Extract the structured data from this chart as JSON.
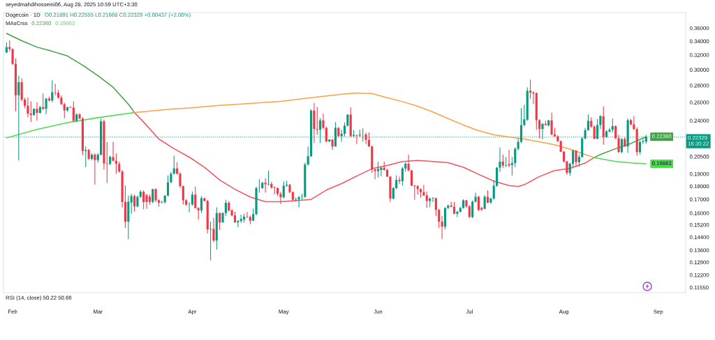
{
  "chart_data": {
    "type": "candlestick",
    "title": "Dogecoin · 1D",
    "subtitle": "seyedmahdihosseini06, Aug 28, 2025 10:59 UTC+3:30",
    "annotations": [
      "O0.21891 H0.22555 L0.21668 C0.22329 +0.00437 (+2.00%)",
      "MAsCrss",
      "RSI (14, close) 50.22 50.66"
    ],
    "log": "y",
    "xlim": [
      "2025-01-29",
      "2025-09-10"
    ],
    "xticks": [
      {
        "value": "2025-02-01",
        "label": "Feb"
      },
      {
        "value": "2025-03-01",
        "label": "Mar"
      },
      {
        "value": "2025-04-01",
        "label": "Apr"
      },
      {
        "value": "2025-05-01",
        "label": "May"
      },
      {
        "value": "2025-06-01",
        "label": "Jun"
      },
      {
        "value": "2025-07-01",
        "label": "Jul"
      },
      {
        "value": "2025-08-01",
        "label": "Aug"
      },
      {
        "value": "2025-09-01",
        "label": "Sep"
      }
    ],
    "ylim": [
      0.1129,
      0.3854
    ],
    "yticks": [
      {
        "value": 0.36,
        "label": "0.36000"
      },
      {
        "value": 0.34,
        "label": "0.34000"
      },
      {
        "value": 0.32,
        "label": "0.32000"
      },
      {
        "value": 0.3,
        "label": "0.30000"
      },
      {
        "value": 0.28,
        "label": "0.28000"
      },
      {
        "value": 0.26,
        "label": "0.26000"
      },
      {
        "value": 0.24,
        "label": "0.24000"
      },
      {
        "value": 0.205,
        "label": "0.20500"
      },
      {
        "value": 0.19,
        "label": "0.19000"
      },
      {
        "value": 0.18,
        "label": "0.18000"
      },
      {
        "value": 0.17,
        "label": "0.17000"
      },
      {
        "value": 0.16,
        "label": "0.16000"
      },
      {
        "value": 0.152,
        "label": "0.15200"
      },
      {
        "value": 0.144,
        "label": "0.14400"
      },
      {
        "value": 0.136,
        "label": "0.13600"
      },
      {
        "value": 0.129,
        "label": "0.12900"
      },
      {
        "value": 0.122,
        "label": "0.12200"
      },
      {
        "value": 0.1155,
        "label": "0.11550"
      }
    ],
    "ref_lines": [
      {
        "axis": "y",
        "value": 0.22329,
        "label": "0.22329\n16:30:22",
        "color": "#089981",
        "line_style": "dotted"
      }
    ],
    "series": [
      {
        "color": "#089981",
        "x": [
          "2025-01-30",
          "2025-02-03",
          "2025-02-08",
          "2025-02-10",
          "2025-02-12",
          "2025-02-14",
          "2025-02-19",
          "2025-02-22",
          "2025-02-25",
          "2025-02-27",
          "2025-03-01",
          "2025-03-02",
          "2025-03-05",
          "2025-03-11",
          "2025-03-12",
          "2025-03-14",
          "2025-03-15",
          "2025-03-19",
          "2025-03-22",
          "2025-03-23",
          "2025-03-24",
          "2025-03-25",
          "2025-03-26",
          "2025-03-31",
          "2025-04-01",
          "2025-04-04",
          "2025-04-07",
          "2025-04-09",
          "2025-04-11",
          "2025-04-12",
          "2025-04-16",
          "2025-04-17",
          "2025-04-18",
          "2025-04-21",
          "2025-04-22",
          "2025-04-23",
          "2025-04-24",
          "2025-04-26",
          "2025-05-01",
          "2025-05-02",
          "2025-05-05",
          "2025-05-06",
          "2025-05-07",
          "2025-05-08",
          "2025-05-09",
          "2025-05-10",
          "2025-05-13",
          "2025-05-16",
          "2025-05-18",
          "2025-05-20",
          "2025-05-21",
          "2025-05-22",
          "2025-05-24",
          "2025-05-26",
          "2025-05-27",
          "2025-06-01",
          "2025-06-02",
          "2025-06-06",
          "2025-06-07",
          "2025-06-09",
          "2025-06-10",
          "2025-06-18",
          "2025-06-19",
          "2025-06-23",
          "2025-06-24",
          "2025-06-27",
          "2025-06-28",
          "2025-06-29",
          "2025-07-02",
          "2025-07-03",
          "2025-07-06",
          "2025-07-08",
          "2025-07-09",
          "2025-07-10",
          "2025-07-11",
          "2025-07-13",
          "2025-07-15",
          "2025-07-16",
          "2025-07-17",
          "2025-07-18",
          "2025-07-19",
          "2025-07-20",
          "2025-07-25",
          "2025-07-27",
          "2025-08-03",
          "2025-08-04",
          "2025-08-06",
          "2025-08-07",
          "2025-08-08",
          "2025-08-09",
          "2025-08-12",
          "2025-08-13",
          "2025-08-15",
          "2025-08-16",
          "2025-08-17",
          "2025-08-20",
          "2025-08-22",
          "2025-08-26",
          "2025-08-27",
          "2025-08-28"
        ],
        "ohlc": [
          [
            0.3236,
            0.3383,
            0.3226,
            0.3312
          ],
          [
            0.2681,
            0.292,
            0.2016,
            0.284
          ],
          [
            0.246,
            0.2535,
            0.245,
            0.2527
          ],
          [
            0.2483,
            0.256,
            0.2475,
            0.2545
          ],
          [
            0.2527,
            0.2653,
            0.247,
            0.264
          ],
          [
            0.262,
            0.2864,
            0.26,
            0.2716
          ],
          [
            0.251,
            0.255,
            0.2495,
            0.2545
          ],
          [
            0.2397,
            0.2478,
            0.2385,
            0.2465
          ],
          [
            0.21,
            0.2143,
            0.1956,
            0.211
          ],
          [
            0.203,
            0.2078,
            0.2015,
            0.2067
          ],
          [
            0.2018,
            0.2081,
            0.1996,
            0.2067
          ],
          [
            0.2067,
            0.242,
            0.2062,
            0.2392
          ],
          [
            0.1985,
            0.2057,
            0.1975,
            0.2047
          ],
          [
            0.154,
            0.1727,
            0.1427,
            0.1682
          ],
          [
            0.1675,
            0.174,
            0.1596,
            0.1723
          ],
          [
            0.1648,
            0.1727,
            0.164,
            0.1718
          ],
          [
            0.1718,
            0.177,
            0.171,
            0.1757
          ],
          [
            0.168,
            0.178,
            0.167,
            0.1777
          ],
          [
            0.1676,
            0.169,
            0.1669,
            0.1678
          ],
          [
            0.1678,
            0.173,
            0.1669,
            0.1727
          ],
          [
            0.1727,
            0.1888,
            0.1722,
            0.1831
          ],
          [
            0.1831,
            0.1916,
            0.1826,
            0.1902
          ],
          [
            0.1902,
            0.2057,
            0.1895,
            0.1946
          ],
          [
            0.166,
            0.1678,
            0.1605,
            0.1662
          ],
          [
            0.1662,
            0.1759,
            0.1652,
            0.1735
          ],
          [
            0.1619,
            0.1723,
            0.1602,
            0.1708
          ],
          [
            0.149,
            0.1541,
            0.13,
            0.1493
          ],
          [
            0.1419,
            0.1641,
            0.1363,
            0.1601
          ],
          [
            0.1536,
            0.1605,
            0.1533,
            0.1601
          ],
          [
            0.1601,
            0.1697,
            0.158,
            0.1674
          ],
          [
            0.1536,
            0.1551,
            0.1505,
            0.1545
          ],
          [
            0.1545,
            0.1588,
            0.1533,
            0.1559
          ],
          [
            0.1556,
            0.1596,
            0.1536,
            0.1575
          ],
          [
            0.1548,
            0.1632,
            0.1545,
            0.1593
          ],
          [
            0.1593,
            0.1796,
            0.1583,
            0.1785
          ],
          [
            0.1785,
            0.1856,
            0.175,
            0.1787
          ],
          [
            0.1785,
            0.1833,
            0.178,
            0.1828
          ],
          [
            0.1815,
            0.1926,
            0.1806,
            0.1818
          ],
          [
            0.1716,
            0.1838,
            0.1705,
            0.1804
          ],
          [
            0.1804,
            0.1845,
            0.1796,
            0.1811
          ],
          [
            0.1696,
            0.1713,
            0.1683,
            0.1699
          ],
          [
            0.1699,
            0.1727,
            0.164,
            0.1716
          ],
          [
            0.1716,
            0.174,
            0.1696,
            0.1718
          ],
          [
            0.1718,
            0.1995,
            0.1711,
            0.1979
          ],
          [
            0.1979,
            0.2143,
            0.1971,
            0.2053
          ],
          [
            0.2053,
            0.2522,
            0.2047,
            0.2507
          ],
          [
            0.2306,
            0.2426,
            0.2176,
            0.2402
          ],
          [
            0.2191,
            0.2213,
            0.2183,
            0.2209
          ],
          [
            0.2143,
            0.2385,
            0.2141,
            0.2325
          ],
          [
            0.2243,
            0.2306,
            0.2187,
            0.2266
          ],
          [
            0.2266,
            0.2381,
            0.2238,
            0.2346
          ],
          [
            0.2346,
            0.247,
            0.2339,
            0.2464
          ],
          [
            0.2243,
            0.2301,
            0.2232,
            0.2254
          ],
          [
            0.2248,
            0.2306,
            0.2232,
            0.2257
          ],
          [
            0.2257,
            0.232,
            0.2191,
            0.2259
          ],
          [
            0.1924,
            0.2004,
            0.1869,
            0.1941
          ],
          [
            0.1933,
            0.196,
            0.1882,
            0.1952
          ],
          [
            0.1705,
            0.1794,
            0.1699,
            0.1785
          ],
          [
            0.1785,
            0.1888,
            0.1776,
            0.185
          ],
          [
            0.1841,
            0.1956,
            0.1804,
            0.1946
          ],
          [
            0.1946,
            0.2,
            0.1918,
            0.1986
          ],
          [
            0.1687,
            0.1713,
            0.1641,
            0.1705
          ],
          [
            0.1705,
            0.1716,
            0.1679,
            0.1708
          ],
          [
            0.1508,
            0.1641,
            0.1489,
            0.1636
          ],
          [
            0.1636,
            0.1662,
            0.1628,
            0.1654
          ],
          [
            0.1596,
            0.1616,
            0.1572,
            0.1609
          ],
          [
            0.1609,
            0.1645,
            0.1605,
            0.1636
          ],
          [
            0.1636,
            0.17,
            0.1631,
            0.1692
          ],
          [
            0.1572,
            0.1692,
            0.1564,
            0.1682
          ],
          [
            0.1682,
            0.175,
            0.1675,
            0.1718
          ],
          [
            0.163,
            0.1732,
            0.1628,
            0.1718
          ],
          [
            0.1676,
            0.1713,
            0.1667,
            0.1705
          ],
          [
            0.1705,
            0.185,
            0.1696,
            0.1804
          ],
          [
            0.1804,
            0.196,
            0.1796,
            0.1952
          ],
          [
            0.1952,
            0.2132,
            0.1918,
            0.2004
          ],
          [
            0.1971,
            0.2047,
            0.1956,
            0.1975
          ],
          [
            0.1976,
            0.2047,
            0.1887,
            0.1992
          ],
          [
            0.1992,
            0.2132,
            0.1956,
            0.2122
          ],
          [
            0.2122,
            0.2221,
            0.2105,
            0.2187
          ],
          [
            0.2187,
            0.2535,
            0.2176,
            0.2354
          ],
          [
            0.2354,
            0.2574,
            0.234,
            0.2414
          ],
          [
            0.2409,
            0.2778,
            0.2397,
            0.2736
          ],
          [
            0.2313,
            0.2373,
            0.221,
            0.2366
          ],
          [
            0.2349,
            0.2406,
            0.2337,
            0.2402
          ],
          [
            0.1907,
            0.1996,
            0.1884,
            0.1986
          ],
          [
            0.1986,
            0.2111,
            0.1956,
            0.2104
          ],
          [
            0.2,
            0.2068,
            0.196,
            0.2047
          ],
          [
            0.2047,
            0.2232,
            0.2041,
            0.2219
          ],
          [
            0.2219,
            0.2325,
            0.221,
            0.2302
          ],
          [
            0.2302,
            0.2466,
            0.2297,
            0.2397
          ],
          [
            0.2217,
            0.2416,
            0.221,
            0.2354
          ],
          [
            0.2354,
            0.2459,
            0.2313,
            0.2446
          ],
          [
            0.2232,
            0.2302,
            0.2226,
            0.229
          ],
          [
            0.2288,
            0.2325,
            0.2278,
            0.2306
          ],
          [
            0.2306,
            0.2421,
            0.2278,
            0.2342
          ],
          [
            0.209,
            0.2221,
            0.2079,
            0.2214
          ],
          [
            0.2143,
            0.2421,
            0.2083,
            0.2404
          ],
          [
            0.209,
            0.2198,
            0.2068,
            0.2183
          ],
          [
            0.2183,
            0.2214,
            0.2165,
            0.2192
          ],
          [
            0.21891,
            0.22555,
            0.21668,
            0.22329
          ]
        ]
      },
      {
        "color": "#f23645",
        "x": [
          "2025-01-31",
          "2025-02-01",
          "2025-02-02",
          "2025-02-04",
          "2025-02-05",
          "2025-02-06",
          "2025-02-07",
          "2025-02-09",
          "2025-02-11",
          "2025-02-13",
          "2025-02-15",
          "2025-02-16",
          "2025-02-17",
          "2025-02-18",
          "2025-02-20",
          "2025-02-21",
          "2025-02-23",
          "2025-02-24",
          "2025-02-26",
          "2025-02-28",
          "2025-03-03",
          "2025-03-04",
          "2025-03-06",
          "2025-03-07",
          "2025-03-08",
          "2025-03-09",
          "2025-03-10",
          "2025-03-13",
          "2025-03-16",
          "2025-03-17",
          "2025-03-18",
          "2025-03-20",
          "2025-03-21",
          "2025-03-27",
          "2025-03-28",
          "2025-03-29",
          "2025-03-30",
          "2025-04-02",
          "2025-04-03",
          "2025-04-05",
          "2025-04-06",
          "2025-04-08",
          "2025-04-10",
          "2025-04-13",
          "2025-04-14",
          "2025-04-15",
          "2025-04-19",
          "2025-04-20",
          "2025-04-25",
          "2025-04-27",
          "2025-04-28",
          "2025-04-29",
          "2025-04-30",
          "2025-05-03",
          "2025-05-04",
          "2025-05-11",
          "2025-05-12",
          "2025-05-14",
          "2025-05-15",
          "2025-05-17",
          "2025-05-19",
          "2025-05-23",
          "2025-05-25",
          "2025-05-28",
          "2025-05-29",
          "2025-05-30",
          "2025-05-31",
          "2025-06-03",
          "2025-06-04",
          "2025-06-05",
          "2025-06-08",
          "2025-06-11",
          "2025-06-12",
          "2025-06-13",
          "2025-06-14",
          "2025-06-15",
          "2025-06-16",
          "2025-06-17",
          "2025-06-20",
          "2025-06-21",
          "2025-06-22",
          "2025-06-25",
          "2025-06-26",
          "2025-06-30",
          "2025-07-01",
          "2025-07-04",
          "2025-07-05",
          "2025-07-07",
          "2025-07-12",
          "2025-07-14",
          "2025-07-21",
          "2025-07-22",
          "2025-07-23",
          "2025-07-24",
          "2025-07-26",
          "2025-07-28",
          "2025-07-29",
          "2025-07-30",
          "2025-07-31",
          "2025-08-01",
          "2025-08-02",
          "2025-08-05",
          "2025-08-10",
          "2025-08-11",
          "2025-08-14",
          "2025-08-18",
          "2025-08-19",
          "2025-08-21",
          "2025-08-23",
          "2025-08-24",
          "2025-08-25"
        ],
        "ohlc": [
          [
            0.3312,
            0.3412,
            0.3252,
            0.3286
          ],
          [
            0.3286,
            0.329,
            0.306,
            0.3076
          ],
          [
            0.3076,
            0.315,
            0.25,
            0.2681
          ],
          [
            0.284,
            0.289,
            0.261,
            0.263
          ],
          [
            0.263,
            0.2653,
            0.2535,
            0.2561
          ],
          [
            0.2561,
            0.2657,
            0.2435,
            0.2475
          ],
          [
            0.2475,
            0.261,
            0.2385,
            0.246
          ],
          [
            0.2527,
            0.26,
            0.24,
            0.2483
          ],
          [
            0.2545,
            0.2702,
            0.2515,
            0.2527
          ],
          [
            0.264,
            0.2666,
            0.261,
            0.262
          ],
          [
            0.2716,
            0.282,
            0.268,
            0.2712
          ],
          [
            0.2712,
            0.2745,
            0.264,
            0.2653
          ],
          [
            0.2653,
            0.268,
            0.257,
            0.258
          ],
          [
            0.258,
            0.2595,
            0.2425,
            0.251
          ],
          [
            0.2545,
            0.2555,
            0.2535,
            0.254
          ],
          [
            0.254,
            0.261,
            0.2385,
            0.2397
          ],
          [
            0.2465,
            0.2478,
            0.2415,
            0.242
          ],
          [
            0.242,
            0.2435,
            0.2062,
            0.21
          ],
          [
            0.211,
            0.212,
            0.2018,
            0.203
          ],
          [
            0.2067,
            0.2078,
            0.1812,
            0.2018
          ],
          [
            0.2392,
            0.241,
            0.1936,
            0.199
          ],
          [
            0.199,
            0.2183,
            0.1825,
            0.1985
          ],
          [
            0.2047,
            0.2187,
            0.2008,
            0.2012
          ],
          [
            0.2012,
            0.2078,
            0.1902,
            0.1985
          ],
          [
            0.1985,
            0.2004,
            0.191,
            0.192
          ],
          [
            0.192,
            0.1932,
            0.164,
            0.1679
          ],
          [
            0.1679,
            0.1806,
            0.15,
            0.154
          ],
          [
            0.1723,
            0.1735,
            0.1612,
            0.1648
          ],
          [
            0.1757,
            0.1767,
            0.1626,
            0.1679
          ],
          [
            0.173,
            0.174,
            0.163,
            0.1679
          ],
          [
            0.172,
            0.1735,
            0.166,
            0.168
          ],
          [
            0.1777,
            0.1784,
            0.1679,
            0.1692
          ],
          [
            0.1692,
            0.17,
            0.1645,
            0.1676
          ],
          [
            0.1946,
            0.2,
            0.1895,
            0.1902
          ],
          [
            0.1902,
            0.1913,
            0.1787,
            0.18
          ],
          [
            0.18,
            0.1804,
            0.1662,
            0.1692
          ],
          [
            0.1692,
            0.17,
            0.1652,
            0.166
          ],
          [
            0.1735,
            0.1798,
            0.1631,
            0.1636
          ],
          [
            0.1636,
            0.1641,
            0.1556,
            0.1619
          ],
          [
            0.1708,
            0.1713,
            0.1683,
            0.1687
          ],
          [
            0.1687,
            0.1695,
            0.1463,
            0.149
          ],
          [
            0.1493,
            0.1568,
            0.1408,
            0.1419
          ],
          [
            0.1601,
            0.1605,
            0.1486,
            0.1536
          ],
          [
            0.1674,
            0.1687,
            0.161,
            0.1619
          ],
          [
            0.1619,
            0.1627,
            0.1577,
            0.1583
          ],
          [
            0.1583,
            0.161,
            0.1533,
            0.1536
          ],
          [
            0.1575,
            0.1608,
            0.1567,
            0.1572
          ],
          [
            0.1572,
            0.1583,
            0.1524,
            0.1548
          ],
          [
            0.1828,
            0.1863,
            0.175,
            0.1815
          ],
          [
            0.1818,
            0.1835,
            0.1781,
            0.1789
          ],
          [
            0.1789,
            0.18,
            0.1735,
            0.1785
          ],
          [
            0.1785,
            0.179,
            0.1723,
            0.1741
          ],
          [
            0.1741,
            0.1757,
            0.1665,
            0.1716
          ],
          [
            0.1811,
            0.1818,
            0.1746,
            0.1754
          ],
          [
            0.1754,
            0.1759,
            0.1687,
            0.1696
          ],
          [
            0.2507,
            0.2594,
            0.2176,
            0.2313
          ],
          [
            0.2313,
            0.2548,
            0.2255,
            0.2306
          ],
          [
            0.2402,
            0.2475,
            0.2313,
            0.2325
          ],
          [
            0.2325,
            0.2337,
            0.2183,
            0.2191
          ],
          [
            0.2209,
            0.2213,
            0.2112,
            0.2143
          ],
          [
            0.2325,
            0.233,
            0.2232,
            0.2243
          ],
          [
            0.2464,
            0.2542,
            0.2232,
            0.2243
          ],
          [
            0.2254,
            0.2257,
            0.2165,
            0.2248
          ],
          [
            0.2259,
            0.2278,
            0.2165,
            0.2205
          ],
          [
            0.2205,
            0.2278,
            0.2139,
            0.2143
          ],
          [
            0.2143,
            0.2153,
            0.1909,
            0.1937
          ],
          [
            0.1937,
            0.1946,
            0.1856,
            0.1924
          ],
          [
            0.1952,
            0.2004,
            0.1928,
            0.1933
          ],
          [
            0.1933,
            0.1943,
            0.1874,
            0.1878
          ],
          [
            0.1878,
            0.1882,
            0.1682,
            0.1705
          ],
          [
            0.185,
            0.1878,
            0.1819,
            0.1841
          ],
          [
            0.1986,
            0.2067,
            0.1922,
            0.1928
          ],
          [
            0.1928,
            0.1933,
            0.18,
            0.1806
          ],
          [
            0.1806,
            0.181,
            0.1696,
            0.18
          ],
          [
            0.18,
            0.181,
            0.1737,
            0.1778
          ],
          [
            0.1778,
            0.1783,
            0.1713,
            0.1754
          ],
          [
            0.1754,
            0.181,
            0.1723,
            0.1729
          ],
          [
            0.1729,
            0.1759,
            0.1636,
            0.1687
          ],
          [
            0.1708,
            0.1713,
            0.158,
            0.1622
          ],
          [
            0.1622,
            0.163,
            0.15,
            0.154
          ],
          [
            0.154,
            0.158,
            0.1427,
            0.1508
          ],
          [
            0.1654,
            0.1682,
            0.1641,
            0.1645
          ],
          [
            0.1645,
            0.1679,
            0.1593,
            0.1596
          ],
          [
            0.1692,
            0.1695,
            0.1636,
            0.1648
          ],
          [
            0.1648,
            0.1657,
            0.1567,
            0.1572
          ],
          [
            0.1718,
            0.1727,
            0.1614,
            0.1622
          ],
          [
            0.1636,
            0.1645,
            0.1614,
            0.1625
          ],
          [
            0.1718,
            0.1767,
            0.167,
            0.1676
          ],
          [
            0.2004,
            0.2067,
            0.1952,
            0.1971
          ],
          [
            0.1984,
            0.2111,
            0.1956,
            0.1972
          ],
          [
            0.2736,
            0.2873,
            0.264,
            0.2714
          ],
          [
            0.2714,
            0.273,
            0.2579,
            0.2703
          ],
          [
            0.2708,
            0.2714,
            0.2306,
            0.2404
          ],
          [
            0.2404,
            0.2416,
            0.2221,
            0.2313
          ],
          [
            0.2366,
            0.2397,
            0.2349,
            0.2354
          ],
          [
            0.2402,
            0.2484,
            0.225,
            0.2259
          ],
          [
            0.2259,
            0.2325,
            0.2232,
            0.2239
          ],
          [
            0.2239,
            0.225,
            0.2183,
            0.2194
          ],
          [
            0.2194,
            0.2198,
            0.209,
            0.2094
          ],
          [
            0.2094,
            0.21,
            0.1996,
            0.2006
          ],
          [
            0.2006,
            0.2012,
            0.1893,
            0.1907
          ],
          [
            0.2104,
            0.2109,
            0.196,
            0.2
          ],
          [
            0.2397,
            0.2433,
            0.2325,
            0.2337
          ],
          [
            0.2337,
            0.2349,
            0.221,
            0.2217
          ],
          [
            0.2446,
            0.2553,
            0.2161,
            0.2232
          ],
          [
            0.2342,
            0.2349,
            0.2214,
            0.2221
          ],
          [
            0.2221,
            0.2255,
            0.2083,
            0.209
          ],
          [
            0.2214,
            0.2232,
            0.2139,
            0.2143
          ],
          [
            0.2404,
            0.2416,
            0.2349,
            0.2361
          ],
          [
            0.2361,
            0.2446,
            0.2302,
            0.2313
          ],
          [
            0.2313,
            0.233,
            0.2058,
            0.209
          ]
        ]
      },
      {
        "type": "line",
        "color": "#43a047",
        "x": [
          "2025-01-30",
          "2025-02-04",
          "2025-02-09",
          "2025-02-14",
          "2025-02-19",
          "2025-02-24",
          "2025-03-01",
          "2025-03-06",
          "2025-03-11",
          "2025-03-13"
        ],
        "values": [
          0.3517,
          0.3405,
          0.3312,
          0.3252,
          0.3186,
          0.306,
          0.2923,
          0.2778,
          0.2579,
          0.2487
        ]
      },
      {
        "type": "line",
        "color": "#f7525f",
        "x": [
          "2025-03-13",
          "2025-03-16",
          "2025-03-21",
          "2025-03-26",
          "2025-03-31",
          "2025-04-05",
          "2025-04-10",
          "2025-04-15",
          "2025-04-20",
          "2025-04-25",
          "2025-04-30",
          "2025-05-05",
          "2025-05-10",
          "2025-05-15",
          "2025-05-20",
          "2025-05-25",
          "2025-05-30",
          "2025-06-04",
          "2025-06-09",
          "2025-06-14",
          "2025-06-19",
          "2025-06-24",
          "2025-06-29",
          "2025-07-04",
          "2025-07-09",
          "2025-07-14",
          "2025-07-17",
          "2025-07-19",
          "2025-07-24",
          "2025-07-29",
          "2025-08-03",
          "2025-08-08",
          "2025-08-11"
        ],
        "values": [
          0.2487,
          0.2385,
          0.2214,
          0.2122,
          0.2045,
          0.1956,
          0.185,
          0.1776,
          0.1717,
          0.1682,
          0.1682,
          0.169,
          0.1699,
          0.177,
          0.1821,
          0.1882,
          0.1944,
          0.1972,
          0.2006,
          0.2016,
          0.2006,
          0.1996,
          0.1956,
          0.1897,
          0.184,
          0.1806,
          0.1797,
          0.1812,
          0.1878,
          0.1928,
          0.1946,
          0.1992,
          0.2041
        ]
      },
      {
        "type": "line",
        "color": "#43a047",
        "x": [
          "2025-08-11",
          "2025-08-13",
          "2025-08-18",
          "2025-08-23",
          "2025-08-28"
        ],
        "values": [
          0.2041,
          0.2068,
          0.2122,
          0.2171,
          0.2236
        ],
        "value_labels": [
          null,
          null,
          null,
          null,
          "0.22360"
        ]
      },
      {
        "type": "line",
        "color": "#4cdd4c",
        "x": [
          "2025-01-30",
          "2025-02-09",
          "2025-02-19",
          "2025-03-01",
          "2025-03-13"
        ],
        "values": [
          0.2225,
          0.2309,
          0.2378,
          0.2431,
          0.2487
        ]
      },
      {
        "type": "line",
        "color": "#ff9f43",
        "x": [
          "2025-03-13",
          "2025-03-26",
          "2025-03-31",
          "2025-04-10",
          "2025-04-20",
          "2025-04-30",
          "2025-05-10",
          "2025-05-20",
          "2025-05-25",
          "2025-05-30",
          "2025-06-04",
          "2025-06-09",
          "2025-06-14",
          "2025-06-19",
          "2025-06-24",
          "2025-06-29",
          "2025-07-04",
          "2025-07-09",
          "2025-07-14",
          "2025-07-19",
          "2025-07-24",
          "2025-07-29",
          "2025-08-03",
          "2025-08-08",
          "2025-08-11"
        ],
        "values": [
          0.2487,
          0.2527,
          0.2537,
          0.2566,
          0.2587,
          0.2611,
          0.2653,
          0.2694,
          0.2708,
          0.2703,
          0.2653,
          0.2608,
          0.2556,
          0.2492,
          0.2421,
          0.2354,
          0.2297,
          0.2255,
          0.2235,
          0.2214,
          0.2187,
          0.2159,
          0.2118,
          0.2068,
          0.2041
        ]
      },
      {
        "type": "line",
        "color": "#4cdd4c",
        "x": [
          "2025-08-11",
          "2025-08-18",
          "2025-08-23",
          "2025-08-28"
        ],
        "values": [
          0.2041,
          0.2006,
          0.1994,
          0.19863
        ],
        "value_labels": [
          null,
          null,
          null,
          "0.19863"
        ]
      }
    ]
  }
}
